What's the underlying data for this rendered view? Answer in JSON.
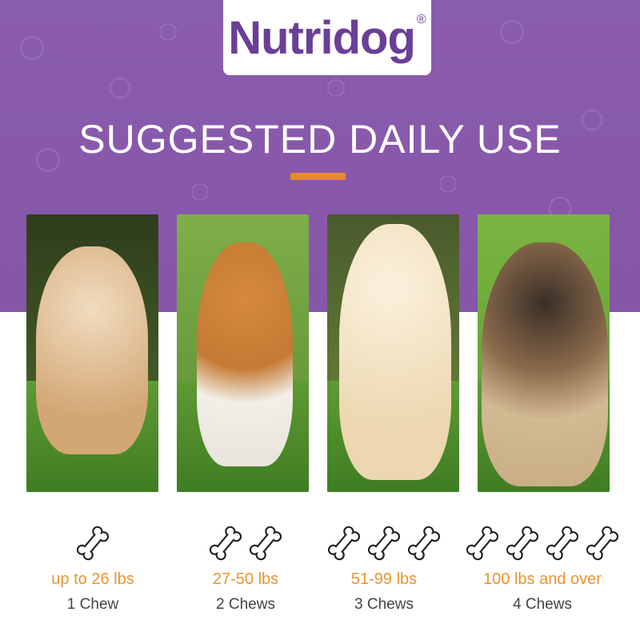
{
  "brand": {
    "name": "Nutridog",
    "mark": "®",
    "color": "#6a3f97"
  },
  "title": "SUGGESTED DAILY USE",
  "colors": {
    "band": "#8a5cae",
    "accent": "#e8892f",
    "range_text": "#e8952e"
  },
  "tiers": [
    {
      "photo": "small fluffy puppy",
      "bones": 1,
      "range": "up to 26 lbs",
      "dose": "1 Chew"
    },
    {
      "photo": "beagle",
      "bones": 2,
      "range": "27-50 lbs",
      "dose": "2 Chews"
    },
    {
      "photo": "golden retriever",
      "bones": 3,
      "range": "51-99 lbs",
      "dose": "3 Chews"
    },
    {
      "photo": "mastiff",
      "bones": 4,
      "range": "100 lbs and over",
      "dose": "4 Chews"
    }
  ]
}
